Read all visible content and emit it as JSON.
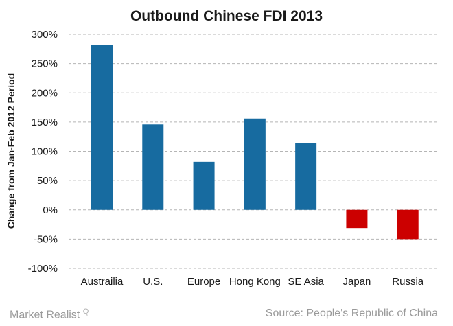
{
  "chart_data": {
    "type": "bar",
    "title": "Outbound Chinese FDI 2013",
    "xlabel": "",
    "ylabel": "Change from Jan-Feb 2012 Period",
    "ylim": [
      -100,
      300
    ],
    "yticks": [
      300,
      250,
      200,
      150,
      100,
      50,
      0,
      -50,
      -100
    ],
    "ytick_labels": [
      "300%",
      "250%",
      "200%",
      "150%",
      "100%",
      "50%",
      "0%",
      "-50%",
      "-100%"
    ],
    "categories": [
      "Austrailia",
      "U.S.",
      "Europe",
      "Hong Kong",
      "SE Asia",
      "Japan",
      "Russia"
    ],
    "values": [
      282,
      146,
      82,
      156,
      114,
      -31,
      -50
    ],
    "grid": true,
    "colors": {
      "positive": "#176ba0",
      "negative": "#cc0000",
      "grid": "#b5b5b5",
      "text": "#1a1a1a",
      "footer": "#9a9a9a"
    }
  },
  "footer": {
    "brand": "Market Realist",
    "brand_mark": "Q",
    "source": "Source: People's Republic of China"
  }
}
